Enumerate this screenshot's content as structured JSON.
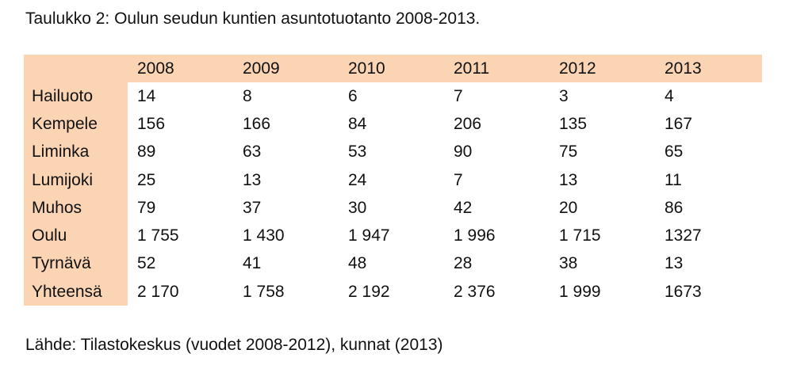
{
  "caption": "Taulukko 2: Oulun seudun kuntien asuntotuotanto 2008-2013.",
  "table": {
    "header_fill": "#fbd4b4",
    "years": [
      "2008",
      "2009",
      "2010",
      "2011",
      "2012",
      "2013"
    ],
    "rows": [
      {
        "name": "Hailuoto",
        "values": [
          "14",
          "8",
          "6",
          "7",
          "3",
          "4"
        ]
      },
      {
        "name": "Kempele",
        "values": [
          "156",
          "166",
          "84",
          "206",
          "135",
          "167"
        ]
      },
      {
        "name": "Liminka",
        "values": [
          "89",
          "63",
          "53",
          "90",
          "75",
          "65"
        ]
      },
      {
        "name": "Lumijoki",
        "values": [
          "25",
          "13",
          "24",
          "7",
          "13",
          "11"
        ]
      },
      {
        "name": "Muhos",
        "values": [
          "79",
          "37",
          "30",
          "42",
          "20",
          "86"
        ]
      },
      {
        "name": "Oulu",
        "values": [
          "1 755",
          "1 430",
          "1 947",
          "1 996",
          "1 715",
          "1327"
        ]
      },
      {
        "name": "Tyrnävä",
        "values": [
          "52",
          "41",
          "48",
          "28",
          "38",
          "13"
        ]
      },
      {
        "name": "Yhteensä",
        "values": [
          "2 170",
          "1 758",
          "2 192",
          "2 376",
          "1 999",
          "1673"
        ]
      }
    ]
  },
  "source": "Lähde: Tilastokeskus (vuodet 2008-2012), kunnat (2013)"
}
